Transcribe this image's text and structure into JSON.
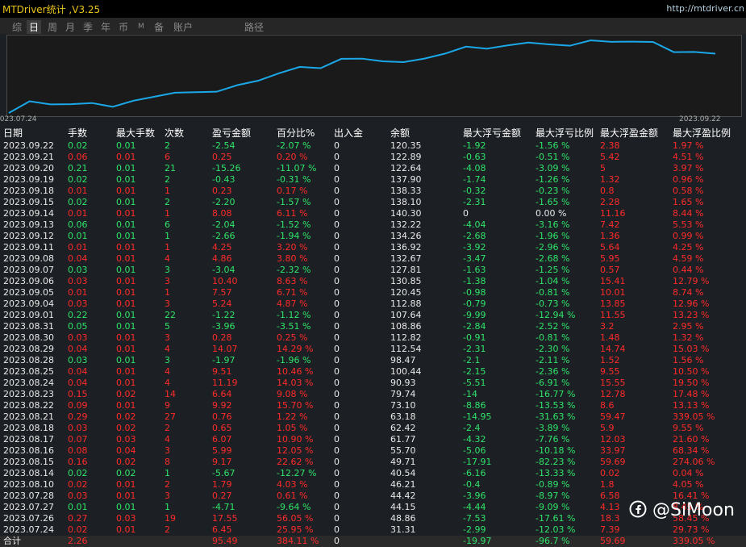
{
  "header": {
    "title": "MTDriver统计 ,V3.25",
    "url": "http://mtdriver.cn"
  },
  "tabs": [
    "综",
    "日",
    "周",
    "月",
    "季",
    "年",
    "币",
    "M",
    "备",
    "账户",
    "路径"
  ],
  "active_tab": 1,
  "table": {
    "columns": [
      "日期",
      "手数",
      "最大手数",
      "次数",
      "盈亏金额",
      "百分比%",
      "出入金",
      "余额",
      "最大浮亏金额",
      "最大浮亏比例",
      "最大浮盈金额",
      "最大浮盈比例"
    ],
    "rows": [
      [
        "2023.09.22",
        "0.02",
        "0.01",
        "2",
        "-2.54",
        "-2.07 %",
        "0",
        "120.35",
        "-1.92",
        "-1.56 %",
        "2.38",
        "1.97 %"
      ],
      [
        "2023.09.21",
        "0.06",
        "0.01",
        "6",
        "0.25",
        "0.20 %",
        "0",
        "122.89",
        "-0.63",
        "-0.51 %",
        "5.42",
        "4.51 %"
      ],
      [
        "2023.09.20",
        "0.21",
        "0.01",
        "21",
        "-15.26",
        "-11.07 %",
        "0",
        "122.64",
        "-4.08",
        "-3.09 %",
        "5",
        "3.97 %"
      ],
      [
        "2023.09.19",
        "0.02",
        "0.01",
        "2",
        "-0.43",
        "-0.31 %",
        "0",
        "137.90",
        "-1.74",
        "-1.26 %",
        "1.32",
        "0.96 %"
      ],
      [
        "2023.09.18",
        "0.01",
        "0.01",
        "1",
        "0.23",
        "0.17 %",
        "0",
        "138.33",
        "-0.32",
        "-0.23 %",
        "0.8",
        "0.58 %"
      ],
      [
        "2023.09.15",
        "0.02",
        "0.01",
        "2",
        "-2.20",
        "-1.57 %",
        "0",
        "138.10",
        "-2.31",
        "-1.65 %",
        "2.28",
        "1.65 %"
      ],
      [
        "2023.09.14",
        "0.01",
        "0.01",
        "1",
        "8.08",
        "6.11 %",
        "0",
        "140.30",
        "0",
        "0.00 %",
        "11.16",
        "8.44 %"
      ],
      [
        "2023.09.13",
        "0.06",
        "0.01",
        "6",
        "-2.04",
        "-1.52 %",
        "0",
        "132.22",
        "-4.04",
        "-3.16 %",
        "7.42",
        "5.53 %"
      ],
      [
        "2023.09.12",
        "0.01",
        "0.01",
        "1",
        "-2.66",
        "-1.94 %",
        "0",
        "134.26",
        "-2.68",
        "-1.96 %",
        "1.36",
        "0.99 %"
      ],
      [
        "2023.09.11",
        "0.01",
        "0.01",
        "1",
        "4.25",
        "3.20 %",
        "0",
        "136.92",
        "-3.92",
        "-2.96 %",
        "5.64",
        "4.25 %"
      ],
      [
        "2023.09.08",
        "0.04",
        "0.01",
        "4",
        "4.86",
        "3.80 %",
        "0",
        "132.67",
        "-3.47",
        "-2.68 %",
        "5.95",
        "4.59 %"
      ],
      [
        "2023.09.07",
        "0.03",
        "0.01",
        "3",
        "-3.04",
        "-2.32 %",
        "0",
        "127.81",
        "-1.63",
        "-1.25 %",
        "0.57",
        "0.44 %"
      ],
      [
        "2023.09.06",
        "0.03",
        "0.01",
        "3",
        "10.40",
        "8.63 %",
        "0",
        "130.85",
        "-1.38",
        "-1.04 %",
        "15.41",
        "12.79 %"
      ],
      [
        "2023.09.05",
        "0.01",
        "0.01",
        "1",
        "7.57",
        "6.71 %",
        "0",
        "120.45",
        "-0.98",
        "-0.81 %",
        "10.01",
        "8.74 %"
      ],
      [
        "2023.09.04",
        "0.03",
        "0.01",
        "3",
        "5.24",
        "4.87 %",
        "0",
        "112.88",
        "-0.79",
        "-0.73 %",
        "13.85",
        "12.96 %"
      ],
      [
        "2023.09.01",
        "0.22",
        "0.01",
        "22",
        "-1.22",
        "-1.12 %",
        "0",
        "107.64",
        "-9.99",
        "-12.94 %",
        "11.55",
        "13.23 %"
      ],
      [
        "2023.08.31",
        "0.05",
        "0.01",
        "5",
        "-3.96",
        "-3.51 %",
        "0",
        "108.86",
        "-2.84",
        "-2.52 %",
        "3.2",
        "2.95 %"
      ],
      [
        "2023.08.30",
        "0.03",
        "0.01",
        "3",
        "0.28",
        "0.25 %",
        "0",
        "112.82",
        "-0.91",
        "-0.81 %",
        "1.48",
        "1.32 %"
      ],
      [
        "2023.08.29",
        "0.04",
        "0.01",
        "4",
        "14.07",
        "14.29 %",
        "0",
        "112.54",
        "-2.31",
        "-2.30 %",
        "14.74",
        "15.03 %"
      ],
      [
        "2023.08.28",
        "0.03",
        "0.01",
        "3",
        "-1.97",
        "-1.96 %",
        "0",
        "98.47",
        "-2.1",
        "-2.11 %",
        "1.52",
        "1.56 %"
      ],
      [
        "2023.08.25",
        "0.04",
        "0.01",
        "4",
        "9.51",
        "10.46 %",
        "0",
        "100.44",
        "-2.15",
        "-2.36 %",
        "9.55",
        "10.50 %"
      ],
      [
        "2023.08.24",
        "0.04",
        "0.01",
        "4",
        "11.19",
        "14.03 %",
        "0",
        "90.93",
        "-5.51",
        "-6.91 %",
        "15.55",
        "19.50 %"
      ],
      [
        "2023.08.23",
        "0.15",
        "0.02",
        "14",
        "6.64",
        "9.08 %",
        "0",
        "79.74",
        "-14",
        "-16.77 %",
        "12.78",
        "17.48 %"
      ],
      [
        "2023.08.22",
        "0.09",
        "0.01",
        "9",
        "9.92",
        "15.70 %",
        "0",
        "73.10",
        "-8.86",
        "-13.53 %",
        "8.6",
        "13.13 %"
      ],
      [
        "2023.08.21",
        "0.29",
        "0.02",
        "27",
        "0.76",
        "1.22 %",
        "0",
        "63.18",
        "-14.95",
        "-31.63 %",
        "59.47",
        "339.05 %"
      ],
      [
        "2023.08.18",
        "0.03",
        "0.02",
        "2",
        "0.65",
        "1.05 %",
        "0",
        "62.42",
        "-2.4",
        "-3.89 %",
        "5.9",
        "9.55 %"
      ],
      [
        "2023.08.17",
        "0.07",
        "0.03",
        "4",
        "6.07",
        "10.90 %",
        "0",
        "61.77",
        "-4.32",
        "-7.76 %",
        "12.03",
        "21.60 %"
      ],
      [
        "2023.08.16",
        "0.08",
        "0.04",
        "3",
        "5.99",
        "12.05 %",
        "0",
        "55.70",
        "-5.06",
        "-10.18 %",
        "33.97",
        "68.34 %"
      ],
      [
        "2023.08.15",
        "0.16",
        "0.02",
        "8",
        "9.17",
        "22.62 %",
        "0",
        "49.71",
        "-17.91",
        "-82.23 %",
        "59.69",
        "274.06 %"
      ],
      [
        "2023.08.14",
        "0.02",
        "0.02",
        "1",
        "-5.67",
        "-12.27 %",
        "0",
        "40.54",
        "-6.16",
        "-13.33 %",
        "0.02",
        "0.04 %"
      ],
      [
        "2023.08.10",
        "0.02",
        "0.01",
        "2",
        "1.79",
        "4.03 %",
        "0",
        "46.21",
        "-0.4",
        "-0.89 %",
        "1.8",
        "4.05 %"
      ],
      [
        "2023.07.28",
        "0.03",
        "0.01",
        "3",
        "0.27",
        "0.61 %",
        "0",
        "44.42",
        "-3.96",
        "-8.97 %",
        "6.58",
        "16.41 %"
      ],
      [
        "2023.07.27",
        "0.01",
        "0.01",
        "1",
        "-4.71",
        "-9.64 %",
        "0",
        "44.15",
        "-4.44",
        "-9.09 %",
        "4.13",
        "8.45 %"
      ],
      [
        "2023.07.26",
        "0.27",
        "0.03",
        "19",
        "17.55",
        "56.05 %",
        "0",
        "48.86",
        "-7.53",
        "-17.61 %",
        "18.3",
        "58.45 %"
      ],
      [
        "2023.07.24",
        "0.02",
        "0.01",
        "2",
        "6.45",
        "25.95 %",
        "0",
        "31.31",
        "-2.99",
        "-12.03 %",
        "7.39",
        "29.73 %"
      ]
    ],
    "total": [
      "合计",
      "2.26",
      null,
      null,
      "95.49",
      "384.11 %",
      "0",
      null,
      "-19.97",
      "-96.7 %",
      "59.69",
      "339.05 %"
    ]
  },
  "watermark": "@SiMoon"
}
